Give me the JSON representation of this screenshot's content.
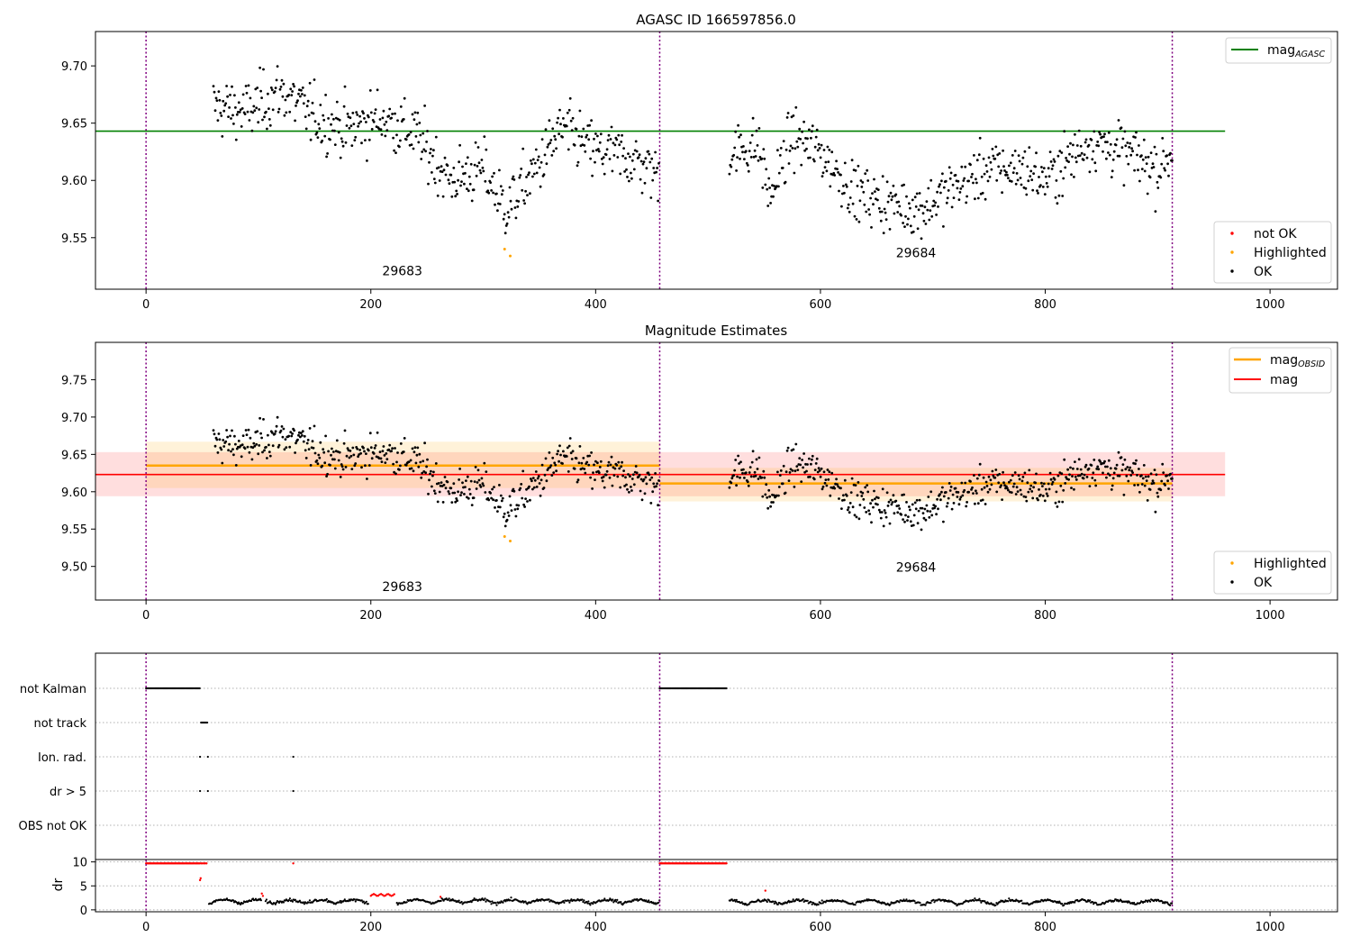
{
  "chart_data": [
    {
      "type": "scatter",
      "title": "AGASC ID 166597856.0",
      "xlim": [
        -45,
        1060
      ],
      "ylim": [
        9.505,
        9.73
      ],
      "xticks": [
        0,
        200,
        400,
        600,
        800,
        1000
      ],
      "yticks": [
        9.55,
        9.6,
        9.65,
        9.7
      ],
      "obsid_boundaries": [
        0,
        457,
        913
      ],
      "obsid_labels": [
        {
          "text": "29683",
          "x": 228,
          "y": 9.517
        },
        {
          "text": "29684",
          "x": 685,
          "y": 9.533
        }
      ],
      "reference_line": {
        "name": "mag$_{AGASC}$",
        "label": "mag",
        "sub": "AGASC",
        "y": 9.643,
        "x": [
          -45,
          960
        ],
        "color": "#008000"
      },
      "series": [
        {
          "name": "not OK",
          "color": "#ff0000",
          "points": []
        },
        {
          "name": "Highlighted",
          "color": "#ffa500",
          "points": [
            [
              319,
              9.54
            ],
            [
              324,
              9.534
            ]
          ]
        },
        {
          "name": "OK",
          "color": "#000000",
          "points": "29683: x 60-457, y ~9.68 falling to ~9.56 at x=320 then ~9.63; 29684: x 518-913, y ~9.63, dip to ~9.58 at x=650, rise to ~9.64 at x=840"
        }
      ],
      "legend": [
        {
          "location": "upper right",
          "entries": [
            "mag_AGASC"
          ]
        },
        {
          "location": "lower right",
          "entries": [
            "not OK",
            "Highlighted",
            "OK"
          ]
        }
      ]
    },
    {
      "type": "scatter",
      "title": "Magnitude Estimates",
      "xlim": [
        -45,
        1060
      ],
      "ylim": [
        9.455,
        9.8
      ],
      "xticks": [
        0,
        200,
        400,
        600,
        800,
        1000
      ],
      "yticks": [
        9.5,
        9.55,
        9.6,
        9.65,
        9.7,
        9.75
      ],
      "obsid_boundaries": [
        0,
        457,
        913
      ],
      "obsid_labels": [
        {
          "text": "29683",
          "x": 228,
          "y": 9.467
        },
        {
          "text": "29684",
          "x": 685,
          "y": 9.493
        }
      ],
      "mag": {
        "y": 9.623,
        "band": [
          9.594,
          9.653
        ],
        "x": [
          -45,
          960
        ],
        "color": "#ff0000"
      },
      "mag_obsid": [
        {
          "obsid": "29683",
          "x": [
            0,
            457
          ],
          "y": 9.635,
          "band": [
            9.605,
            9.667
          ]
        },
        {
          "obsid": "29684",
          "x": [
            457,
            913
          ],
          "y": 9.611,
          "band": [
            9.587,
            9.632
          ]
        }
      ],
      "legend": [
        {
          "location": "upper right",
          "entries": [
            {
              "label": "mag",
              "sub": "OBSID",
              "color": "#ffa500"
            },
            {
              "label": "mag",
              "sub": "",
              "color": "#ff0000"
            }
          ]
        },
        {
          "location": "lower right",
          "entries": [
            "Highlighted",
            "OK"
          ]
        }
      ]
    },
    {
      "type": "scatter",
      "title": "",
      "xlim": [
        -45,
        1060
      ],
      "xticks": [
        0,
        200,
        400,
        600,
        800,
        1000
      ],
      "flag_rows": [
        "not Kalman",
        "not track",
        "Ion. rad.",
        "dr > 5",
        "OBS not OK"
      ],
      "flags": {
        "not Kalman": [
          [
            0,
            48
          ],
          [
            457,
            517
          ]
        ],
        "not track": [
          [
            49,
            55
          ]
        ],
        "Ion. rad.": [
          [
            48,
            48
          ],
          [
            55,
            55
          ],
          [
            131,
            131
          ]
        ],
        "dr > 5": [
          [
            48,
            48
          ],
          [
            55,
            55
          ],
          [
            131,
            131
          ]
        ],
        "OBS not OK": []
      },
      "dr_panel": {
        "ylabel": "dr",
        "ylim": [
          -0.4,
          10.5
        ],
        "yticks": [
          0,
          5,
          10
        ]
      }
    }
  ]
}
